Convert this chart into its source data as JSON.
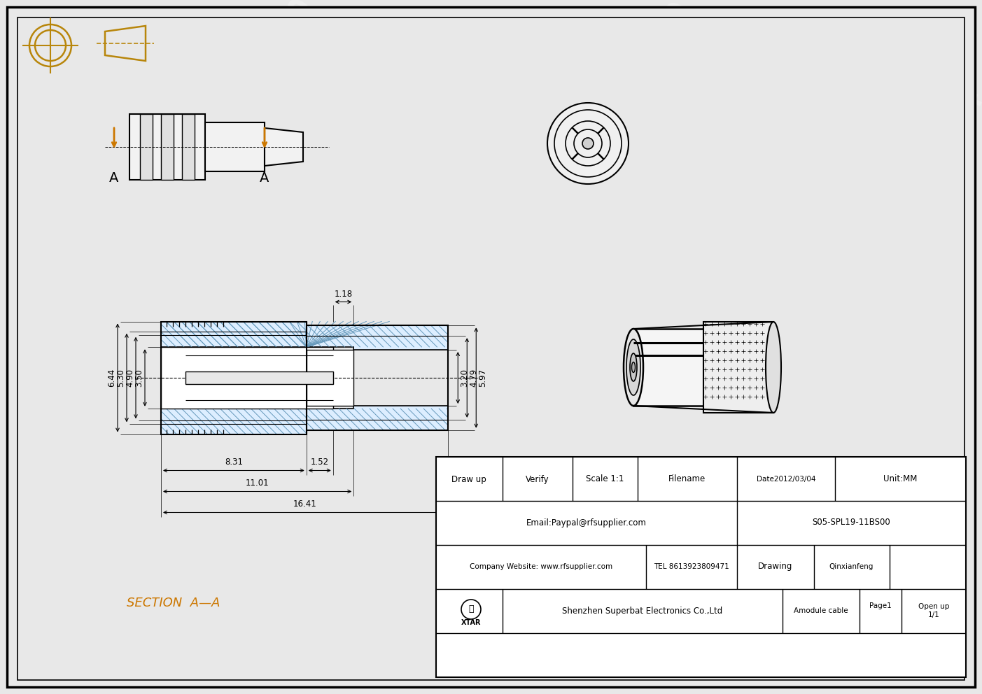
{
  "bg_color": "#e8e8e8",
  "line_color": "#000000",
  "orange_color": "#cc7700",
  "title_color": "#b8860b",
  "watermark_text": "Superbat",
  "section_label": "SECTION  A—A",
  "dims_left": [
    "6.44",
    "5.30",
    "4.90",
    "3.50"
  ],
  "dims_right": [
    "5.97",
    "4.79",
    "3.20"
  ],
  "dim_top": "1.18",
  "dim_8_31": "8.31",
  "dim_11_01": "11.01",
  "dim_16_41": "16.41",
  "dim_1_52": "1.52"
}
